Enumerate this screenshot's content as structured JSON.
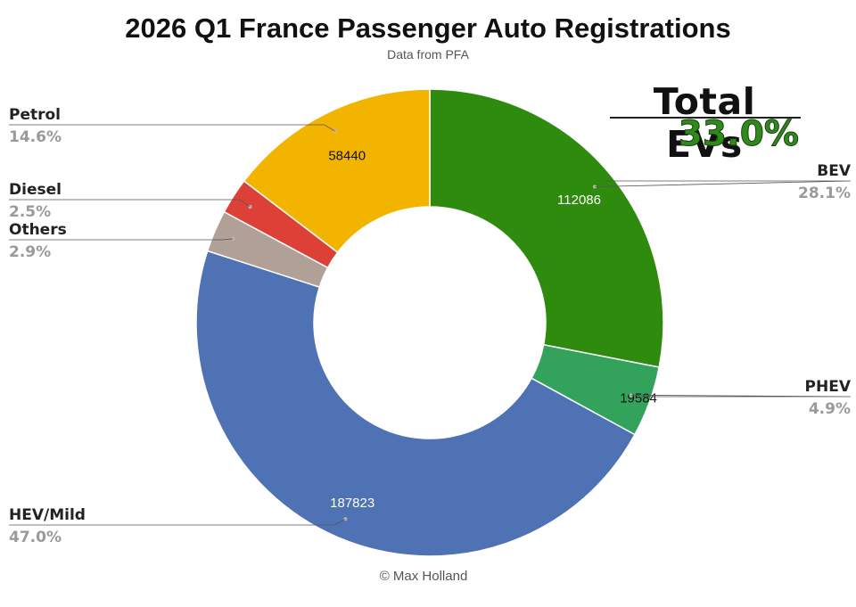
{
  "chart_data": {
    "type": "pie",
    "title": "2026 Q1 France Passenger Auto Registrations",
    "subtitle": "Data from PFA",
    "slices": [
      {
        "label": "BEV",
        "value": 112086,
        "percent": "28.1%",
        "color": "#2e8b0e",
        "value_color": "#ffffff"
      },
      {
        "label": "PHEV",
        "value": 19584,
        "percent": "4.9%",
        "color": "#33a35c",
        "value_color": "#111111"
      },
      {
        "label": "HEV/Mild",
        "value": 187823,
        "percent": "47.0%",
        "color": "#4e72b4",
        "value_color": "#ffffff"
      },
      {
        "label": "Others",
        "value": 11586,
        "percent": "2.9%",
        "color": "#b0a098",
        "value_color": "#111111"
      },
      {
        "label": "Diesel",
        "value": 9990,
        "percent": "2.5%",
        "color": "#dd4036",
        "value_color": "#111111"
      },
      {
        "label": "Petrol",
        "value": 58440,
        "percent": "14.6%",
        "color": "#f3b400",
        "value_color": "#111111"
      }
    ],
    "shown_values": [
      "112086",
      "19584",
      "187823",
      "",
      "",
      "58440"
    ],
    "donut": true,
    "legend": "none"
  },
  "annotation": {
    "label": "Total EVs",
    "value": "33.0%",
    "value_color": "#2e8b1b"
  },
  "footer": {
    "copyright": "© Max Holland"
  }
}
